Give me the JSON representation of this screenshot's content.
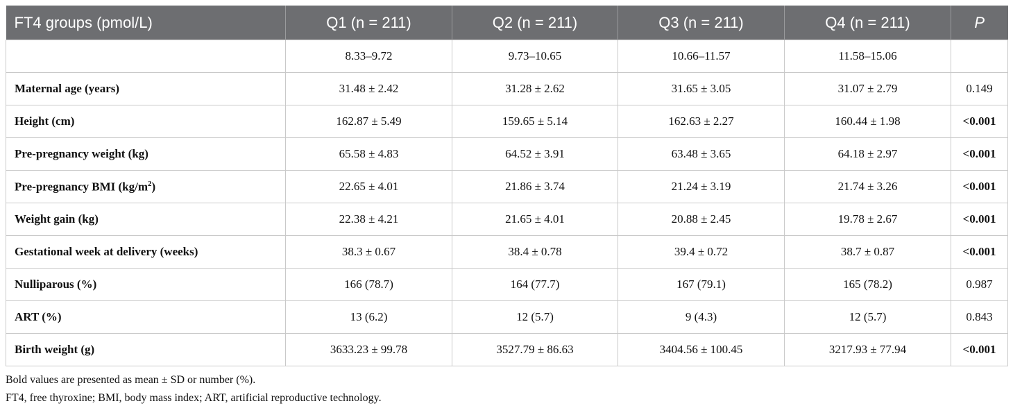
{
  "table": {
    "header": [
      "FT4 groups (pmol/L)",
      "Q1 (n = 211)",
      "Q2 (n = 211)",
      "Q3 (n = 211)",
      "Q4 (n = 211)",
      "P"
    ],
    "rows": [
      {
        "cells": [
          "8.33–9.72",
          "9.73–10.65",
          "10.66–11.57",
          "11.58–15.06"
        ]
      },
      {
        "label": "Maternal age (years)",
        "cells": [
          "31.48 ± 2.42",
          "31.28 ± 2.62",
          "31.65 ± 3.05",
          "31.07 ± 2.79"
        ],
        "p": "0.149",
        "p_bold": false
      },
      {
        "label": "Height (cm)",
        "cells": [
          "162.87 ± 5.49",
          "159.65 ± 5.14",
          "162.63 ± 2.27",
          "160.44 ± 1.98"
        ],
        "p": "<0.001",
        "p_bold": true
      },
      {
        "label": "Pre-pregnancy weight (kg)",
        "cells": [
          "65.58 ± 4.83",
          "64.52 ± 3.91",
          "63.48 ± 3.65",
          "64.18 ± 2.97"
        ],
        "p": "<0.001",
        "p_bold": true
      },
      {
        "label": "Pre-pregnancy BMI (kg/m",
        "label_sup": "2",
        "label_end": ")",
        "cells": [
          "22.65 ± 4.01",
          "21.86 ± 3.74",
          "21.24 ± 3.19",
          "21.74 ± 3.26"
        ],
        "p": "<0.001",
        "p_bold": true
      },
      {
        "label": "Weight gain (kg)",
        "cells": [
          "22.38 ± 4.21",
          "21.65 ± 4.01",
          "20.88 ± 2.45",
          "19.78 ± 2.67"
        ],
        "p": "<0.001",
        "p_bold": true
      },
      {
        "label": "Gestational week at delivery (weeks)",
        "cells": [
          "38.3 ± 0.67",
          "38.4 ± 0.78",
          "39.4 ± 0.72",
          "38.7 ± 0.87"
        ],
        "p": "<0.001",
        "p_bold": true
      },
      {
        "label": "Nulliparous (%)",
        "cells": [
          "166 (78.7)",
          "164 (77.7)",
          "167 (79.1)",
          "165 (78.2)"
        ],
        "p": "0.987",
        "p_bold": false
      },
      {
        "label": "ART (%)",
        "cells": [
          "13 (6.2)",
          "12 (5.7)",
          "9 (4.3)",
          "12 (5.7)"
        ],
        "p": "0.843",
        "p_bold": false
      },
      {
        "label": "Birth weight (g)",
        "cells": [
          "3633.23 ± 99.78",
          "3527.79 ± 86.63",
          "3404.56 ± 100.45",
          "3217.93 ± 77.94"
        ],
        "p": "<0.001",
        "p_bold": true
      }
    ],
    "notes": [
      "Bold values are presented as mean ± SD or number (%).",
      "FT4, free thyroxine; BMI, body mass index; ART, artificial reproductive technology."
    ]
  }
}
